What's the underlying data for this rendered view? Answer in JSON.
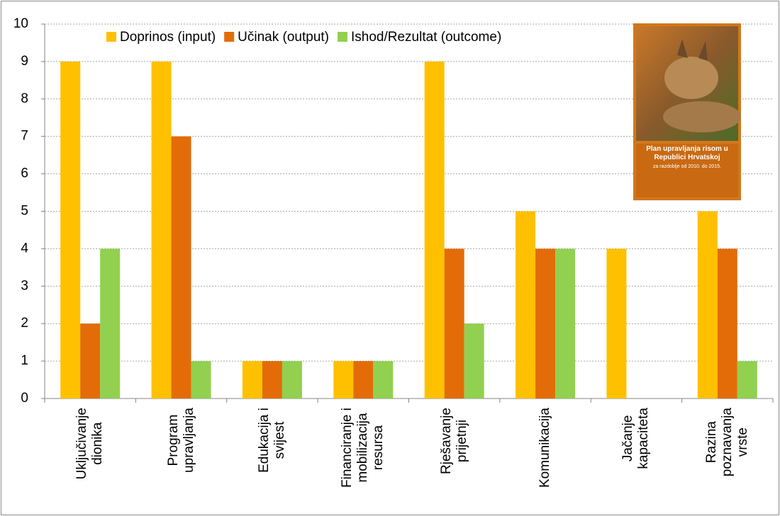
{
  "chart_data": {
    "type": "bar",
    "categories": [
      "Uključivanje\ndionika",
      "Program\nupravljanja",
      "Edukacija i\nsvijest",
      "Financiranje i\nmobilizacija\nresursa",
      "Rješavanje\nprijetnji",
      "Komunikacija",
      "Jačanje\nkapaciteta",
      "Razina\npoznavanja\nvrste"
    ],
    "series": [
      {
        "name": "Doprinos (input)",
        "color": "#ffc000",
        "values": [
          9,
          9,
          1,
          1,
          9,
          5,
          4,
          5
        ]
      },
      {
        "name": "Učinak (output)",
        "color": "#e36c09",
        "values": [
          2,
          7,
          1,
          1,
          4,
          4,
          0,
          4
        ]
      },
      {
        "name": "Ishod/Rezultat (outcome)",
        "color": "#92d050",
        "values": [
          4,
          1,
          1,
          1,
          2,
          4,
          0,
          1
        ]
      }
    ],
    "ylim": [
      0,
      10
    ],
    "yticks": [
      0,
      1,
      2,
      3,
      4,
      5,
      6,
      7,
      8,
      9,
      10
    ],
    "grid": true,
    "inset_title": "Plan upravljanja risom u Republici Hrvatskoj",
    "inset_subtitle": "za razdoblje od 2010. do 2015."
  }
}
